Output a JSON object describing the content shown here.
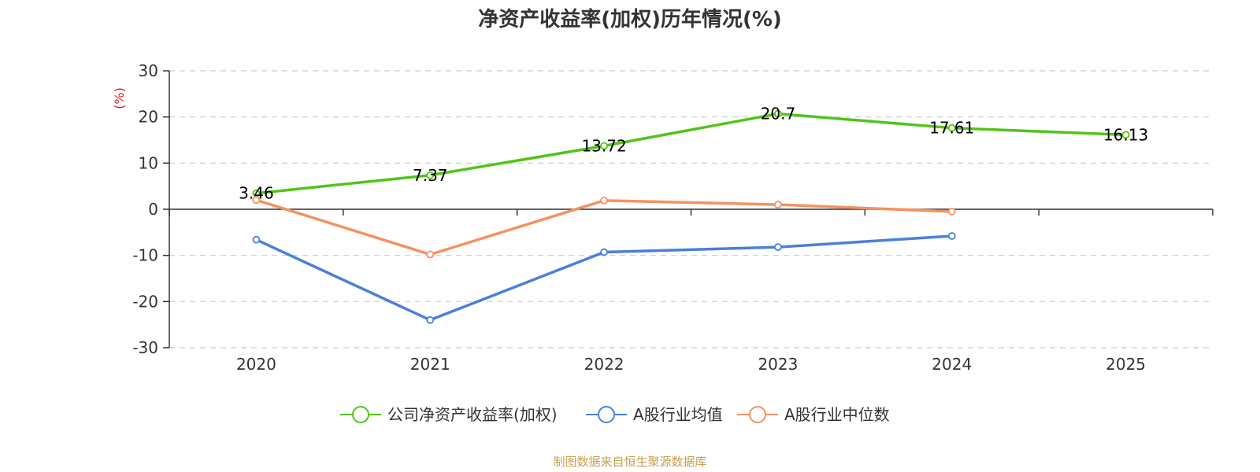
{
  "chart_data": {
    "type": "line",
    "title": "净资产收益率(加权)历年情况(%)",
    "ylabel": "(%)",
    "xlabel": "",
    "categories": [
      "2020",
      "2021",
      "2022",
      "2023",
      "2024",
      "2025"
    ],
    "ylim": [
      -30,
      30
    ],
    "yticks": [
      30,
      20,
      10,
      0,
      -10,
      -20,
      -30
    ],
    "grid": true,
    "legend_position": "bottom",
    "series": [
      {
        "name": "公司净资产收益率(加权)",
        "color": "#52c41a",
        "values": [
          3.46,
          7.37,
          13.72,
          20.7,
          17.61,
          16.13
        ],
        "labels": [
          "3.46",
          "7.37",
          "13.72",
          "20.7",
          "17.61",
          "16.13"
        ]
      },
      {
        "name": "A股行业均值",
        "color": "#4a7fdc",
        "values": [
          -6.6,
          -24.0,
          -9.3,
          -8.2,
          -5.8,
          null
        ],
        "labels": []
      },
      {
        "name": "A股行业中位数",
        "color": "#f79060",
        "values": [
          2.0,
          -9.8,
          1.9,
          1.0,
          -0.5,
          null
        ],
        "labels": []
      }
    ],
    "source": "制图数据来自恒生聚源数据库"
  }
}
